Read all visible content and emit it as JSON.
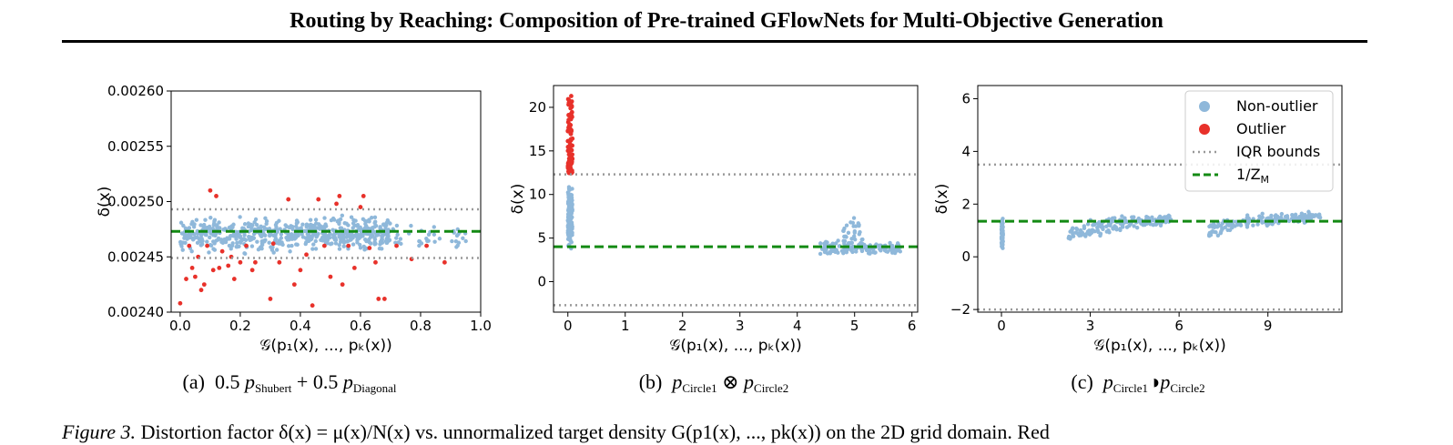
{
  "header": {
    "title": "Routing by Reaching: Composition of Pre-trained GFlowNets for Multi-Objective Generation"
  },
  "colors": {
    "nonoutlier": "#8fb8da",
    "outlier": "#e8312a",
    "iqr": "#999999",
    "invz": "#138a13"
  },
  "legend": {
    "items": [
      "Non-outlier",
      "Outlier",
      "IQR bounds",
      "1/Z",
      "M"
    ]
  },
  "captions": {
    "a": {
      "prefix": "(a)",
      "coef1": "0.5",
      "sub1": "Shubert",
      "plus": "+",
      "coef2": "0.5",
      "sub2": "Diagonal"
    },
    "b": {
      "prefix": "(b)",
      "sub1": "Circle1",
      "op": "⊗",
      "sub2": "Circle2"
    },
    "c": {
      "prefix": "(c)",
      "sub1": "Circle1",
      "op": "◑",
      "sub2": "Circle2"
    }
  },
  "figure_caption": {
    "label": "Figure 3.",
    "text": "Distortion factor δ(x) = μ(x)/N(x) vs. unnormalized target density G(p1(x), ..., pk(x)) on the 2D grid domain. Red"
  },
  "chart_data": [
    {
      "type": "scatter",
      "xlabel": "𝒢(p₁(x), ..., pₖ(x))",
      "ylabel": "δ(x)",
      "xlim": [
        -0.03,
        1.0
      ],
      "ylim": [
        0.0024,
        0.0026
      ],
      "xticks": [
        "0.0",
        "0.2",
        "0.4",
        "0.6",
        "0.8",
        "1.0"
      ],
      "xtick_values": [
        0,
        0.2,
        0.4,
        0.6,
        0.8,
        1.0
      ],
      "yticks": [
        "0.00240",
        "0.00245",
        "0.00250",
        "0.00255",
        "0.00260"
      ],
      "ytick_values": [
        0.0024,
        0.00245,
        0.0025,
        0.00255,
        0.0026
      ],
      "iqr_bounds": [
        0.002449,
        0.002493
      ],
      "inv_z": 0.002473,
      "nonoutlier_bands": [
        {
          "x_min": 0.0,
          "x_max": 0.4,
          "y_min": 0.00245,
          "y_max": 0.00249,
          "count": 320
        },
        {
          "x_min": 0.4,
          "x_max": 0.7,
          "y_min": 0.002452,
          "y_max": 0.00249,
          "count": 300
        },
        {
          "x_min": 0.7,
          "x_max": 0.96,
          "y_min": 0.002452,
          "y_max": 0.002482,
          "count": 40
        }
      ],
      "outliers": [
        [
          0.0,
          0.002408
        ],
        [
          0.02,
          0.00243
        ],
        [
          0.03,
          0.00246
        ],
        [
          0.04,
          0.00244
        ],
        [
          0.05,
          0.002432
        ],
        [
          0.06,
          0.00245
        ],
        [
          0.07,
          0.00242
        ],
        [
          0.08,
          0.002425
        ],
        [
          0.09,
          0.00246
        ],
        [
          0.1,
          0.00251
        ],
        [
          0.11,
          0.002438
        ],
        [
          0.12,
          0.002505
        ],
        [
          0.13,
          0.00244
        ],
        [
          0.14,
          0.002455
        ],
        [
          0.16,
          0.002442
        ],
        [
          0.17,
          0.00245
        ],
        [
          0.18,
          0.00243
        ],
        [
          0.2,
          0.002445
        ],
        [
          0.22,
          0.00246
        ],
        [
          0.24,
          0.002438
        ],
        [
          0.25,
          0.002445
        ],
        [
          0.3,
          0.002412
        ],
        [
          0.31,
          0.002462
        ],
        [
          0.33,
          0.002445
        ],
        [
          0.36,
          0.002502
        ],
        [
          0.38,
          0.002425
        ],
        [
          0.4,
          0.002438
        ],
        [
          0.42,
          0.002452
        ],
        [
          0.44,
          0.002406
        ],
        [
          0.46,
          0.002502
        ],
        [
          0.48,
          0.00246
        ],
        [
          0.5,
          0.002432
        ],
        [
          0.52,
          0.002498
        ],
        [
          0.53,
          0.002505
        ],
        [
          0.54,
          0.002425
        ],
        [
          0.56,
          0.00246
        ],
        [
          0.58,
          0.00244
        ],
        [
          0.6,
          0.002495
        ],
        [
          0.61,
          0.002505
        ],
        [
          0.63,
          0.002458
        ],
        [
          0.65,
          0.002445
        ],
        [
          0.66,
          0.002412
        ],
        [
          0.68,
          0.002412
        ],
        [
          0.72,
          0.00246
        ],
        [
          0.77,
          0.002448
        ],
        [
          0.82,
          0.00246
        ],
        [
          0.88,
          0.002445
        ]
      ]
    },
    {
      "type": "scatter",
      "xlabel": "𝒢(p₁(x), ..., pₖ(x))",
      "ylabel": "δ(x)",
      "xlim": [
        -0.25,
        6.1
      ],
      "ylim": [
        -3.5,
        22.5
      ],
      "xticks": [
        "0",
        "1",
        "2",
        "3",
        "4",
        "5",
        "6"
      ],
      "xtick_values": [
        0,
        1,
        2,
        3,
        4,
        5,
        6
      ],
      "yticks": [
        "0",
        "5",
        "10",
        "15",
        "20"
      ],
      "ytick_values": [
        0,
        5,
        10,
        15,
        20
      ],
      "iqr_bounds": [
        -2.7,
        12.3
      ],
      "inv_z": 4.0,
      "nonoutlier_bands": [
        {
          "x_min": 0.0,
          "x_max": 0.08,
          "y_min": 2.2,
          "y_max": 12.3,
          "count": 160
        },
        {
          "x_min": 4.4,
          "x_max": 5.8,
          "y_min": 2.7,
          "y_max": 5.0,
          "count": 140
        },
        {
          "x_min": 4.8,
          "x_max": 5.1,
          "y_min": 4.0,
          "y_max": 7.8,
          "count": 25
        }
      ],
      "outliers_band": {
        "x_min": 0.0,
        "x_max": 0.08,
        "y_min": 12.4,
        "y_max": 21.3,
        "count": 90
      }
    },
    {
      "type": "scatter",
      "xlabel": "𝒢(p₁(x), ..., pₖ(x))",
      "ylabel": "δ(x)",
      "xlim": [
        -0.8,
        11.5
      ],
      "ylim": [
        -2.1,
        6.5
      ],
      "xticks": [
        "0",
        "3",
        "6",
        "9"
      ],
      "xtick_values": [
        0,
        3,
        6,
        9
      ],
      "yticks": [
        "−2",
        "0",
        "2",
        "4",
        "6"
      ],
      "ytick_values": [
        -2,
        0,
        2,
        4,
        6
      ],
      "iqr_bounds": [
        -2.0,
        3.5
      ],
      "inv_z": 1.35,
      "nonoutlier_bands": [
        {
          "x_min": 0.0,
          "x_max": 0.05,
          "y_min": 0.0,
          "y_max": 1.8,
          "count": 60
        },
        {
          "x_min": 2.2,
          "x_max": 5.8,
          "y_min": 0.1,
          "y_max": 1.7,
          "count": 170
        },
        {
          "x_min": 7.0,
          "x_max": 10.8,
          "y_min": 0.5,
          "y_max": 1.75,
          "count": 180
        }
      ],
      "legend": "top-right"
    }
  ]
}
